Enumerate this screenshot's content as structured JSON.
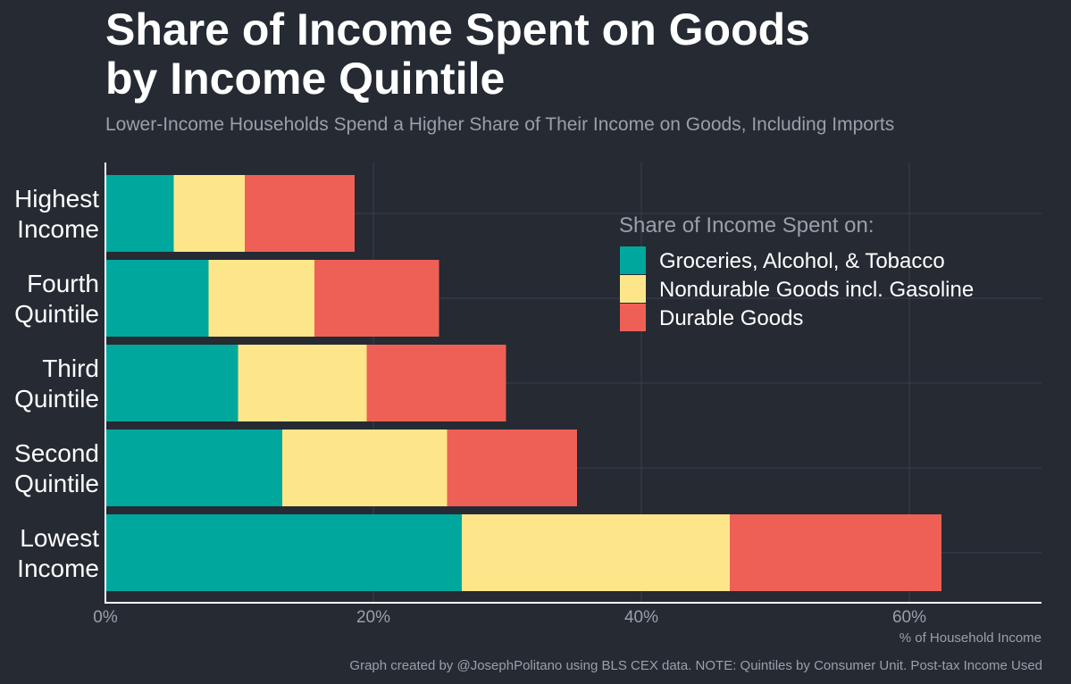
{
  "chart_data": {
    "type": "bar",
    "orientation": "horizontal",
    "stacked": true,
    "title_lines": [
      "Share of Income Spent on Goods",
      "by Income Quintile"
    ],
    "subtitle": "Lower-Income Households Spend a Higher Share of Their Income on Goods, Including Imports",
    "categories": [
      [
        "Highest",
        "Income"
      ],
      [
        "Fourth",
        "Quintile"
      ],
      [
        "Third",
        "Quintile"
      ],
      [
        "Second",
        "Quintile"
      ],
      [
        "Lowest",
        "Income"
      ]
    ],
    "series": [
      {
        "name": "Groceries, Alcohol, & Tobacco",
        "color": "#00a79d",
        "values": [
          5.1,
          7.7,
          9.9,
          13.2,
          26.6
        ]
      },
      {
        "name": "Nondurable Goods incl. Gasoline",
        "color": "#fde68a",
        "values": [
          5.3,
          7.9,
          9.6,
          12.3,
          20.0
        ]
      },
      {
        "name": "Durable Goods",
        "color": "#ee6055",
        "values": [
          8.2,
          9.3,
          10.4,
          9.7,
          15.8
        ]
      }
    ],
    "legend_title": "Share of Income Spent on:",
    "legend_position": "right",
    "x_ticks": [
      0,
      20,
      40,
      60
    ],
    "x_tick_labels": [
      "0%",
      "20%",
      "40%",
      "60%"
    ],
    "xlim": [
      0,
      70
    ],
    "xlabel": "% of Household Income",
    "ylabel": "",
    "grid": true
  },
  "caption": "Graph created by @JosephPolitano using BLS CEX data. NOTE: Quintiles by Consumer Unit. Post-tax Income Used",
  "colors": {
    "background": "#252a33",
    "grid": "#3a3f48",
    "axis": "#ffffff",
    "muted_text": "#9aa0a8"
  }
}
